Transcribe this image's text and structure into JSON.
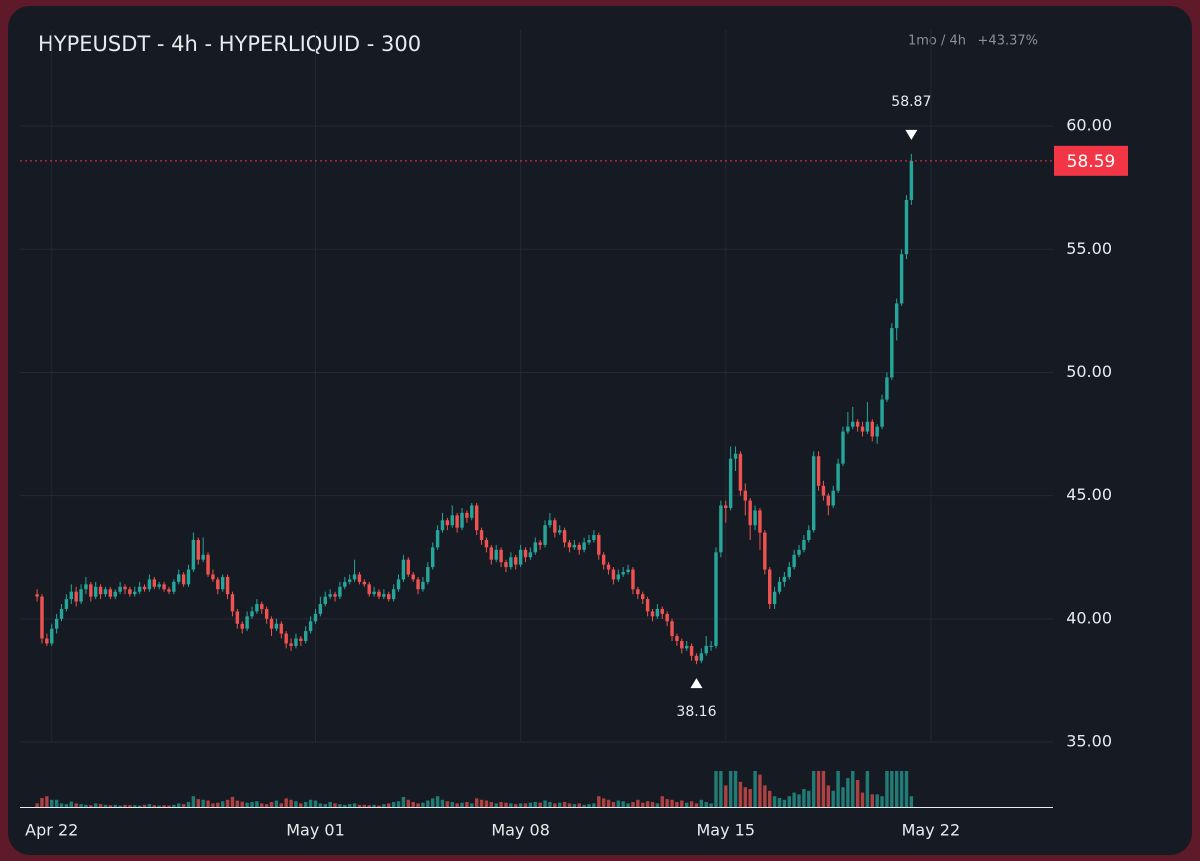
{
  "chart_data": {
    "type": "candlestick",
    "title": "HYPEUSDT - 4h - HYPERLIQUID - 300",
    "range_label": "1mo / 4h",
    "change_label": "+43.37%",
    "up_color": "#26a69a",
    "down_color": "#ef5350",
    "last_price_color": "#f23645",
    "ylim": [
      35,
      63.9
    ],
    "yticks": [
      {
        "value": 35,
        "label": "35.00"
      },
      {
        "value": 40,
        "label": "40.00"
      },
      {
        "value": 45,
        "label": "45.00"
      },
      {
        "value": 50,
        "label": "50.00"
      },
      {
        "value": 55,
        "label": "55.00"
      },
      {
        "value": 60,
        "label": "60.00"
      }
    ],
    "xlim": [
      -3.5,
      208
    ],
    "xticks": [
      {
        "value": 3,
        "label": "Apr 22"
      },
      {
        "value": 57,
        "label": "May 01"
      },
      {
        "value": 99,
        "label": "May 08"
      },
      {
        "value": 141,
        "label": "May 15"
      },
      {
        "value": 183,
        "label": "May 22"
      }
    ],
    "grid": true,
    "vlim": [
      0,
      100
    ],
    "candles": [
      [
        41.0,
        41.2,
        40.7,
        40.9
      ],
      [
        40.9,
        41.0,
        39.0,
        39.2
      ],
      [
        39.2,
        39.4,
        38.9,
        39.0
      ],
      [
        39.0,
        39.8,
        38.9,
        39.6
      ],
      [
        39.6,
        40.2,
        39.4,
        40.0
      ],
      [
        40.0,
        40.6,
        39.9,
        40.4
      ],
      [
        40.4,
        41.0,
        40.3,
        40.8
      ],
      [
        40.8,
        41.4,
        40.6,
        41.1
      ],
      [
        41.1,
        41.3,
        40.5,
        40.7
      ],
      [
        40.7,
        41.4,
        40.6,
        41.2
      ],
      [
        41.2,
        41.7,
        41.0,
        41.4
      ],
      [
        41.4,
        41.5,
        40.7,
        40.9
      ],
      [
        40.9,
        41.5,
        40.8,
        41.3
      ],
      [
        41.3,
        41.4,
        40.8,
        41.0
      ],
      [
        41.0,
        41.3,
        40.9,
        41.2
      ],
      [
        41.2,
        41.3,
        40.8,
        40.9
      ],
      [
        40.9,
        41.2,
        40.8,
        41.1
      ],
      [
        41.1,
        41.5,
        41.0,
        41.3
      ],
      [
        41.3,
        41.4,
        41.0,
        41.2
      ],
      [
        41.2,
        41.3,
        40.9,
        41.0
      ],
      [
        41.0,
        41.3,
        40.9,
        41.1
      ],
      [
        41.1,
        41.5,
        41.0,
        41.3
      ],
      [
        41.3,
        41.4,
        41.1,
        41.2
      ],
      [
        41.2,
        41.8,
        41.1,
        41.6
      ],
      [
        41.6,
        41.7,
        41.2,
        41.3
      ],
      [
        41.3,
        41.5,
        41.2,
        41.4
      ],
      [
        41.4,
        41.5,
        41.1,
        41.2
      ],
      [
        41.2,
        41.3,
        41.0,
        41.1
      ],
      [
        41.1,
        41.6,
        41.0,
        41.5
      ],
      [
        41.5,
        42.0,
        41.4,
        41.8
      ],
      [
        41.8,
        41.9,
        41.3,
        41.4
      ],
      [
        41.4,
        42.2,
        41.3,
        42.0
      ],
      [
        42.0,
        43.5,
        41.9,
        43.2
      ],
      [
        43.2,
        43.3,
        42.2,
        42.4
      ],
      [
        42.4,
        43.3,
        42.3,
        42.6
      ],
      [
        42.6,
        42.7,
        41.7,
        41.8
      ],
      [
        41.8,
        42.0,
        41.5,
        41.6
      ],
      [
        41.6,
        41.7,
        41.0,
        41.2
      ],
      [
        41.2,
        41.8,
        41.1,
        41.7
      ],
      [
        41.7,
        41.8,
        40.8,
        41.0
      ],
      [
        41.0,
        41.1,
        40.1,
        40.3
      ],
      [
        40.3,
        40.4,
        39.6,
        39.8
      ],
      [
        39.8,
        39.9,
        39.4,
        39.6
      ],
      [
        39.6,
        40.3,
        39.5,
        40.1
      ],
      [
        40.1,
        40.5,
        40.0,
        40.3
      ],
      [
        40.3,
        40.8,
        40.2,
        40.6
      ],
      [
        40.6,
        40.7,
        40.2,
        40.4
      ],
      [
        40.4,
        40.5,
        39.8,
        40.0
      ],
      [
        40.0,
        40.1,
        39.3,
        39.6
      ],
      [
        39.6,
        40.0,
        39.5,
        39.8
      ],
      [
        39.8,
        39.9,
        39.2,
        39.4
      ],
      [
        39.4,
        39.5,
        38.8,
        39.0
      ],
      [
        39.0,
        39.2,
        38.7,
        38.9
      ],
      [
        38.9,
        39.4,
        38.8,
        39.2
      ],
      [
        39.2,
        39.3,
        38.9,
        39.1
      ],
      [
        39.1,
        39.7,
        39.0,
        39.5
      ],
      [
        39.5,
        40.1,
        39.4,
        39.9
      ],
      [
        39.9,
        40.4,
        39.8,
        40.2
      ],
      [
        40.2,
        40.9,
        40.1,
        40.6
      ],
      [
        40.6,
        41.1,
        40.5,
        40.9
      ],
      [
        40.9,
        41.2,
        40.8,
        41.0
      ],
      [
        41.0,
        41.1,
        40.7,
        40.9
      ],
      [
        40.9,
        41.5,
        40.8,
        41.3
      ],
      [
        41.3,
        41.7,
        41.2,
        41.5
      ],
      [
        41.5,
        41.8,
        41.4,
        41.6
      ],
      [
        41.6,
        42.4,
        41.5,
        41.8
      ],
      [
        41.8,
        41.9,
        41.4,
        41.5
      ],
      [
        41.5,
        41.6,
        41.3,
        41.4
      ],
      [
        41.4,
        41.5,
        40.9,
        41.0
      ],
      [
        41.0,
        41.3,
        40.9,
        41.1
      ],
      [
        41.1,
        41.2,
        40.8,
        40.9
      ],
      [
        40.9,
        41.2,
        40.8,
        41.0
      ],
      [
        41.0,
        41.1,
        40.7,
        40.8
      ],
      [
        40.8,
        41.4,
        40.7,
        41.2
      ],
      [
        41.2,
        41.8,
        41.1,
        41.6
      ],
      [
        41.6,
        42.6,
        41.5,
        42.4
      ],
      [
        42.4,
        42.5,
        41.7,
        41.8
      ],
      [
        41.8,
        41.9,
        41.5,
        41.6
      ],
      [
        41.6,
        41.7,
        41.0,
        41.2
      ],
      [
        41.2,
        41.7,
        41.1,
        41.5
      ],
      [
        41.5,
        42.3,
        41.4,
        42.1
      ],
      [
        42.1,
        43.1,
        42.0,
        42.9
      ],
      [
        42.9,
        43.8,
        42.8,
        43.6
      ],
      [
        43.6,
        44.3,
        43.5,
        44.0
      ],
      [
        44.0,
        44.1,
        43.6,
        43.8
      ],
      [
        43.8,
        44.6,
        43.7,
        44.2
      ],
      [
        44.2,
        44.3,
        43.5,
        43.7
      ],
      [
        43.7,
        44.5,
        43.6,
        44.3
      ],
      [
        44.3,
        44.4,
        43.9,
        44.1
      ],
      [
        44.1,
        44.7,
        44.0,
        44.6
      ],
      [
        44.6,
        44.7,
        43.4,
        43.6
      ],
      [
        43.6,
        43.7,
        43.0,
        43.2
      ],
      [
        43.2,
        43.3,
        42.7,
        42.9
      ],
      [
        42.9,
        43.0,
        42.2,
        42.4
      ],
      [
        42.4,
        43.0,
        42.3,
        42.8
      ],
      [
        42.8,
        42.9,
        42.1,
        42.3
      ],
      [
        42.3,
        42.4,
        41.9,
        42.1
      ],
      [
        42.1,
        42.7,
        42.0,
        42.5
      ],
      [
        42.5,
        42.6,
        42.0,
        42.2
      ],
      [
        42.2,
        43.0,
        42.1,
        42.8
      ],
      [
        42.8,
        42.9,
        42.3,
        42.5
      ],
      [
        42.5,
        42.9,
        42.4,
        42.7
      ],
      [
        42.7,
        43.3,
        42.6,
        43.1
      ],
      [
        43.1,
        43.2,
        42.8,
        43.0
      ],
      [
        43.0,
        44.0,
        42.9,
        43.8
      ],
      [
        43.8,
        44.3,
        43.7,
        44.0
      ],
      [
        44.0,
        44.1,
        43.3,
        43.5
      ],
      [
        43.5,
        43.8,
        43.4,
        43.6
      ],
      [
        43.6,
        43.7,
        42.9,
        43.1
      ],
      [
        43.1,
        43.2,
        42.7,
        42.9
      ],
      [
        42.9,
        43.2,
        42.8,
        43.0
      ],
      [
        43.0,
        43.1,
        42.6,
        42.8
      ],
      [
        42.8,
        43.3,
        42.7,
        43.1
      ],
      [
        43.1,
        43.4,
        43.0,
        43.2
      ],
      [
        43.2,
        43.6,
        43.1,
        43.4
      ],
      [
        43.4,
        43.5,
        42.4,
        42.6
      ],
      [
        42.6,
        42.7,
        42.0,
        42.2
      ],
      [
        42.2,
        42.3,
        41.8,
        42.0
      ],
      [
        42.0,
        42.1,
        41.4,
        41.6
      ],
      [
        41.6,
        42.0,
        41.5,
        41.8
      ],
      [
        41.8,
        42.1,
        41.7,
        41.9
      ],
      [
        41.9,
        42.2,
        41.8,
        42.0
      ],
      [
        42.0,
        42.1,
        41.0,
        41.2
      ],
      [
        41.2,
        41.3,
        40.8,
        41.0
      ],
      [
        41.0,
        41.1,
        40.6,
        40.8
      ],
      [
        40.8,
        40.9,
        40.1,
        40.3
      ],
      [
        40.3,
        40.4,
        39.9,
        40.1
      ],
      [
        40.1,
        40.6,
        40.0,
        40.4
      ],
      [
        40.4,
        40.5,
        40.0,
        40.2
      ],
      [
        40.2,
        40.3,
        39.7,
        39.9
      ],
      [
        39.9,
        40.0,
        39.1,
        39.3
      ],
      [
        39.3,
        39.4,
        38.9,
        39.1
      ],
      [
        39.1,
        39.2,
        38.6,
        38.8
      ],
      [
        38.8,
        39.1,
        38.7,
        38.9
      ],
      [
        38.9,
        39.0,
        38.3,
        38.5
      ],
      [
        38.5,
        38.6,
        38.16,
        38.3
      ],
      [
        38.3,
        38.8,
        38.2,
        38.6
      ],
      [
        38.6,
        39.3,
        38.5,
        38.9
      ],
      [
        38.9,
        39.1,
        38.7,
        38.9
      ],
      [
        38.9,
        42.9,
        38.8,
        42.7
      ],
      [
        42.7,
        44.8,
        42.5,
        44.6
      ],
      [
        44.6,
        44.8,
        43.9,
        44.5
      ],
      [
        44.5,
        47.0,
        44.4,
        46.5
      ],
      [
        46.5,
        47.0,
        46.0,
        46.7
      ],
      [
        46.7,
        46.8,
        45.0,
        45.2
      ],
      [
        45.2,
        45.5,
        44.2,
        44.8
      ],
      [
        44.8,
        44.9,
        43.2,
        43.8
      ],
      [
        43.8,
        44.6,
        43.6,
        44.4
      ],
      [
        44.4,
        44.5,
        42.8,
        43.5
      ],
      [
        43.5,
        43.6,
        41.8,
        42.0
      ],
      [
        42.0,
        42.1,
        40.4,
        40.6
      ],
      [
        40.6,
        41.3,
        40.4,
        41.1
      ],
      [
        41.1,
        41.7,
        41.0,
        41.5
      ],
      [
        41.5,
        41.9,
        41.3,
        41.7
      ],
      [
        41.7,
        42.3,
        41.6,
        42.1
      ],
      [
        42.1,
        42.8,
        42.0,
        42.6
      ],
      [
        42.6,
        43.0,
        42.5,
        42.8
      ],
      [
        42.8,
        43.4,
        42.7,
        43.2
      ],
      [
        43.2,
        43.8,
        43.1,
        43.6
      ],
      [
        43.6,
        46.8,
        43.5,
        46.6
      ],
      [
        46.6,
        46.8,
        45.2,
        45.4
      ],
      [
        45.4,
        45.6,
        44.8,
        45.0
      ],
      [
        45.0,
        45.1,
        44.2,
        44.6
      ],
      [
        44.6,
        45.4,
        44.5,
        45.2
      ],
      [
        45.2,
        46.5,
        45.1,
        46.3
      ],
      [
        46.3,
        47.8,
        46.2,
        47.6
      ],
      [
        47.6,
        48.4,
        47.5,
        47.8
      ],
      [
        47.8,
        48.6,
        47.7,
        48.0
      ],
      [
        48.0,
        48.1,
        47.6,
        47.8
      ],
      [
        47.8,
        48.0,
        47.4,
        47.6
      ],
      [
        47.6,
        48.8,
        47.5,
        48.0
      ],
      [
        48.0,
        48.1,
        47.2,
        47.4
      ],
      [
        47.4,
        47.9,
        47.1,
        47.8
      ],
      [
        47.8,
        49.1,
        47.7,
        48.9
      ],
      [
        48.9,
        50.0,
        48.8,
        49.8
      ],
      [
        49.8,
        52.0,
        49.7,
        51.8
      ],
      [
        51.8,
        53.0,
        51.3,
        52.8
      ],
      [
        52.8,
        55.0,
        52.7,
        54.8
      ],
      [
        54.8,
        57.2,
        54.6,
        57.0
      ],
      [
        57.0,
        58.87,
        56.8,
        58.59
      ]
    ],
    "volume": [
      10,
      25,
      30,
      20,
      20,
      10,
      8,
      15,
      10,
      8,
      6,
      5,
      10,
      8,
      6,
      5,
      6,
      4,
      6,
      5,
      5,
      4,
      6,
      8,
      5,
      4,
      5,
      4,
      6,
      10,
      8,
      14,
      30,
      22,
      20,
      18,
      10,
      12,
      16,
      20,
      28,
      18,
      15,
      12,
      14,
      16,
      10,
      8,
      14,
      18,
      10,
      24,
      20,
      16,
      10,
      14,
      20,
      18,
      10,
      8,
      14,
      10,
      8,
      6,
      8,
      10,
      6,
      6,
      5,
      6,
      4,
      8,
      10,
      14,
      16,
      28,
      20,
      14,
      10,
      12,
      18,
      24,
      30,
      20,
      16,
      14,
      10,
      12,
      14,
      10,
      24,
      20,
      18,
      14,
      10,
      14,
      12,
      10,
      8,
      10,
      10,
      12,
      14,
      12,
      18,
      14,
      10,
      12,
      14,
      10,
      8,
      10,
      6,
      8,
      10,
      30,
      24,
      20,
      14,
      18,
      16,
      10,
      14,
      20,
      12,
      16,
      14,
      10,
      30,
      22,
      20,
      14,
      18,
      12,
      16,
      10,
      20,
      14,
      10,
      100,
      100,
      60,
      100,
      100,
      70,
      55,
      50,
      100,
      90,
      60,
      45,
      30,
      25,
      20,
      30,
      40,
      35,
      50,
      45,
      100,
      100,
      100,
      60,
      45,
      100,
      55,
      80,
      100,
      75,
      40,
      100,
      35,
      35,
      30,
      100,
      100,
      100,
      100,
      100,
      30
    ]
  }
}
